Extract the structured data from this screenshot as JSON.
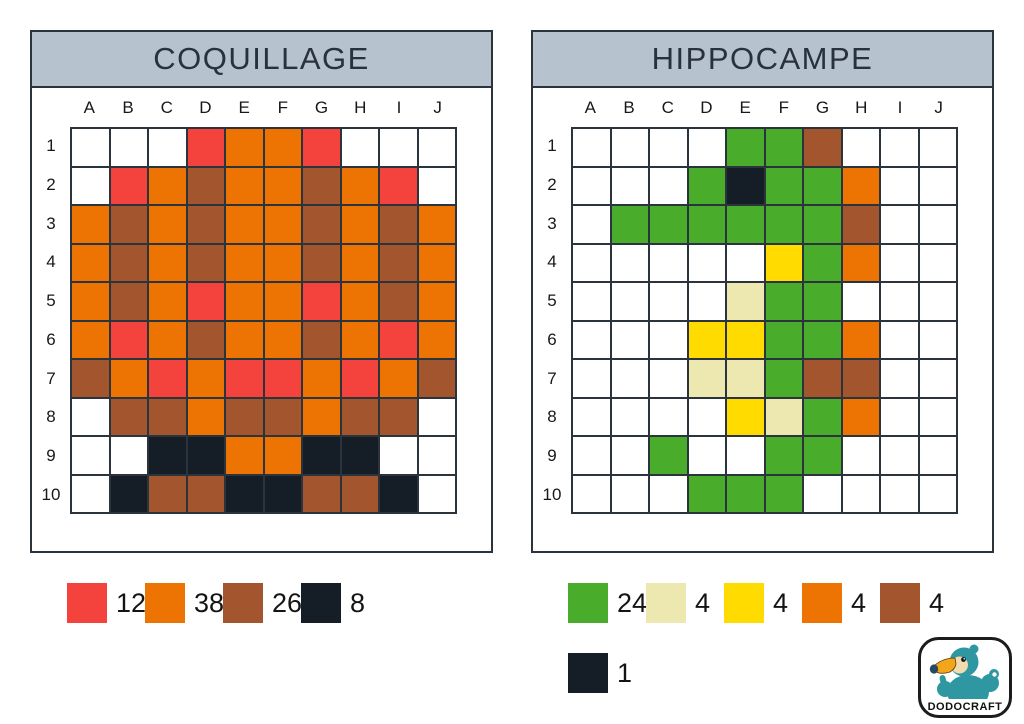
{
  "page": {
    "background": "#ffffff"
  },
  "header_style": {
    "bg": "#b6c2cd",
    "text_color": "#28323e",
    "line_color": "#2b333d"
  },
  "palette": {
    ".": "#ffffff",
    "R": "#f4423c",
    "O": "#ed7302",
    "B": "#a3552e",
    "K": "#151d27",
    "G": "#4aac2b",
    "C": "#ede8b0",
    "Y": "#ffdb00"
  },
  "panels": [
    {
      "title": "COQUILLAGE",
      "columns": [
        "A",
        "B",
        "C",
        "D",
        "E",
        "F",
        "G",
        "H",
        "I",
        "J"
      ],
      "rows": [
        "1",
        "2",
        "3",
        "4",
        "5",
        "6",
        "7",
        "8",
        "9",
        "10"
      ],
      "cells": [
        "...ROOR...",
        ".ROBOOBOR.",
        "OBOBOOBOBO",
        "OBOBOOBOBO",
        "OBOROOROBO",
        "OROBOOBORO",
        "BORORROROB",
        ".BBOBBOBB.",
        "..KKOOKK..",
        ".KBBKKBBK."
      ],
      "legend": [
        {
          "key": "R",
          "name": "red",
          "count": "12"
        },
        {
          "key": "O",
          "name": "orange",
          "count": "38"
        },
        {
          "key": "B",
          "name": "brown",
          "count": "26"
        },
        {
          "key": "K",
          "name": "black",
          "count": "8"
        }
      ]
    },
    {
      "title": "HIPPOCAMPE",
      "columns": [
        "A",
        "B",
        "C",
        "D",
        "E",
        "F",
        "G",
        "H",
        "I",
        "J"
      ],
      "rows": [
        "1",
        "2",
        "3",
        "4",
        "5",
        "6",
        "7",
        "8",
        "9",
        "10"
      ],
      "cells": [
        "....GGB...",
        "...GKGGO..",
        ".GGGGGGB..",
        ".....YGO..",
        "....CGG...",
        "...YYGGO..",
        "...CCGBB..",
        "....YCGO..",
        "..G..GG...",
        "...GGG...."
      ],
      "legend": [
        {
          "key": "G",
          "name": "green",
          "count": "24"
        },
        {
          "key": "C",
          "name": "cream",
          "count": "4"
        },
        {
          "key": "Y",
          "name": "yellow",
          "count": "4"
        },
        {
          "key": "O",
          "name": "orange",
          "count": "4"
        },
        {
          "key": "B",
          "name": "brown",
          "count": "4"
        },
        {
          "key": "K",
          "name": "black",
          "count": "1"
        }
      ]
    }
  ],
  "logo": {
    "label": "DODOCRAFT",
    "bird_body_color": "#2e97a1",
    "beak_color": "#f2a718",
    "face_color": "#f0dcae"
  }
}
